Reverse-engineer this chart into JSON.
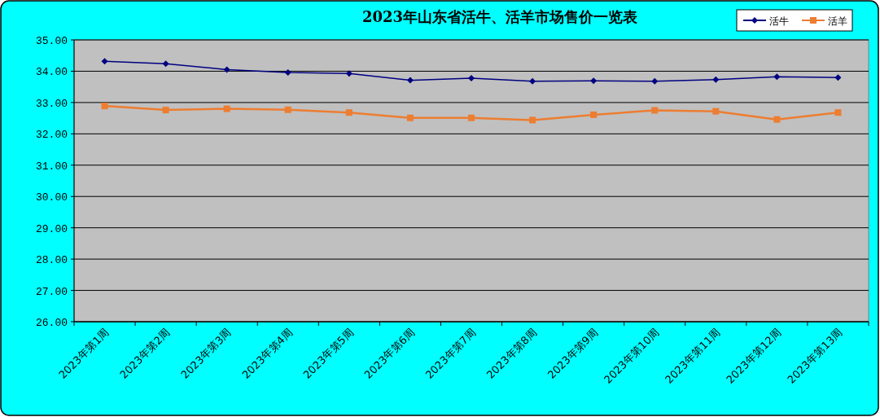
{
  "chart_data": {
    "type": "line",
    "title": "2023年山东省活牛、活羊市场售价一览表",
    "categories": [
      "2023年第1周",
      "2023年第2周",
      "2023年第3周",
      "2023年第4周",
      "2023年第5周",
      "2023年第6周",
      "2023年第7周",
      "2023年第8周",
      "2023年第9周",
      "2023年第10周",
      "2023年第11周",
      "2023年第12周",
      "2023年第13周"
    ],
    "series": [
      {
        "name": "活牛",
        "color": "#000080",
        "marker": "diamond",
        "values": [
          34.32,
          34.24,
          34.05,
          33.96,
          33.93,
          33.71,
          33.78,
          33.68,
          33.69,
          33.68,
          33.73,
          33.82,
          33.8
        ]
      },
      {
        "name": "活羊",
        "color": "#ed7d31",
        "marker": "square",
        "values": [
          32.89,
          32.76,
          32.8,
          32.77,
          32.68,
          32.51,
          32.51,
          32.44,
          32.61,
          32.75,
          32.72,
          32.46,
          32.68
        ]
      }
    ],
    "ylim": [
      26,
      35
    ],
    "yticks": [
      {
        "value": 26,
        "label": "26.00"
      },
      {
        "value": 27,
        "label": "27.00"
      },
      {
        "value": 28,
        "label": "28.00"
      },
      {
        "value": 29,
        "label": "29.00"
      },
      {
        "value": 30,
        "label": "30.00"
      },
      {
        "value": 31,
        "label": "31.00"
      },
      {
        "value": 32,
        "label": "32.00"
      },
      {
        "value": 33,
        "label": "33.00"
      },
      {
        "value": 34,
        "label": "34.00"
      },
      {
        "value": 35,
        "label": "35.00"
      }
    ],
    "grid": "y",
    "legend": "top right",
    "line_style": "solid"
  }
}
